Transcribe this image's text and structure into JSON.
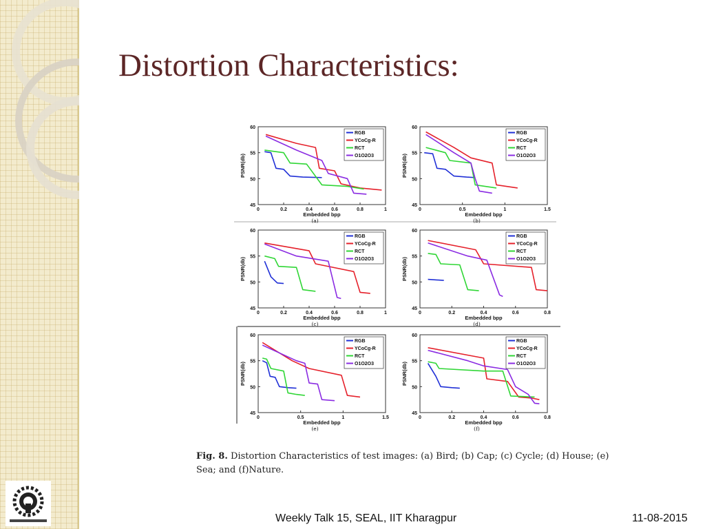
{
  "title": "Distortion Characteristics:",
  "caption": {
    "fig_label": "Fig. 8.",
    "text": "Distortion Characteristics of test images: (a) Bird; (b) Cap; (c) Cycle; (d) House; (e) Sea; and (f)Nature."
  },
  "footer": {
    "center": "Weekly Talk 15, SEAL, IIT Kharagpur",
    "date": "11-08-2015"
  },
  "logo": {
    "text": "IIT KHARAGPUR"
  },
  "colors": {
    "RGB": "#1f2fd6",
    "YCoCg-R": "#e5202a",
    "RCT": "#2fd635",
    "O1O2O3": "#8a2be2",
    "title": "#5c2626"
  },
  "chart_data": [
    {
      "type": "line",
      "label": "(a)",
      "xlabel": "Embedded bpp",
      "ylabel": "PSNR(db)",
      "xlim": [
        0,
        1
      ],
      "ylim": [
        45,
        60
      ],
      "xticks": [
        "0",
        "0.2",
        "0.4",
        "0.6",
        "0.8",
        "1"
      ],
      "yticks": [
        "45",
        "50",
        "55",
        "60"
      ],
      "legend": "top-right",
      "series": [
        {
          "name": "RGB",
          "points": [
            [
              0.05,
              55.2
            ],
            [
              0.1,
              55
            ],
            [
              0.14,
              52
            ],
            [
              0.2,
              51.8
            ],
            [
              0.25,
              50.5
            ],
            [
              0.35,
              50.3
            ],
            [
              0.5,
              50.2
            ]
          ]
        },
        {
          "name": "YCoCg-R",
          "points": [
            [
              0.06,
              58.5
            ],
            [
              0.3,
              56.8
            ],
            [
              0.45,
              56
            ],
            [
              0.48,
              52
            ],
            [
              0.6,
              51.5
            ],
            [
              0.65,
              49
            ],
            [
              0.8,
              48.2
            ],
            [
              0.97,
              47.8
            ]
          ]
        },
        {
          "name": "RCT",
          "points": [
            [
              0.05,
              55.5
            ],
            [
              0.2,
              55
            ],
            [
              0.25,
              53
            ],
            [
              0.38,
              52.8
            ],
            [
              0.5,
              48.8
            ],
            [
              0.7,
              48.5
            ],
            [
              0.83,
              48
            ]
          ]
        },
        {
          "name": "O1O2O3",
          "points": [
            [
              0.06,
              58.2
            ],
            [
              0.3,
              55.5
            ],
            [
              0.5,
              53.5
            ],
            [
              0.55,
              51
            ],
            [
              0.7,
              50
            ],
            [
              0.75,
              47.2
            ],
            [
              0.85,
              47
            ]
          ]
        }
      ]
    },
    {
      "type": "line",
      "label": "(b)",
      "xlabel": "Embedded bpp",
      "ylabel": "PSNR(db)",
      "xlim": [
        0,
        1.5
      ],
      "ylim": [
        45,
        60
      ],
      "xticks": [
        "0",
        "0.5",
        "1",
        "1.5"
      ],
      "yticks": [
        "45",
        "50",
        "55",
        "60"
      ],
      "legend": "top-right",
      "series": [
        {
          "name": "RGB",
          "points": [
            [
              0.05,
              55
            ],
            [
              0.15,
              54.8
            ],
            [
              0.2,
              52
            ],
            [
              0.3,
              51.8
            ],
            [
              0.4,
              50.5
            ],
            [
              0.55,
              50.3
            ],
            [
              0.65,
              50.2
            ]
          ]
        },
        {
          "name": "YCoCg-R",
          "points": [
            [
              0.07,
              59
            ],
            [
              0.4,
              56
            ],
            [
              0.6,
              54
            ],
            [
              0.85,
              53
            ],
            [
              0.9,
              48.8
            ],
            [
              1.15,
              48.2
            ]
          ]
        },
        {
          "name": "RCT",
          "points": [
            [
              0.07,
              56
            ],
            [
              0.3,
              55
            ],
            [
              0.35,
              53.5
            ],
            [
              0.6,
              53
            ],
            [
              0.65,
              48.8
            ],
            [
              0.9,
              48.2
            ]
          ]
        },
        {
          "name": "O1O2O3",
          "points": [
            [
              0.07,
              58.5
            ],
            [
              0.4,
              55
            ],
            [
              0.6,
              53
            ],
            [
              0.65,
              50
            ],
            [
              0.7,
              47.6
            ],
            [
              0.85,
              47.2
            ]
          ]
        }
      ]
    },
    {
      "type": "line",
      "label": "(c)",
      "xlabel": "Embedded bpp",
      "ylabel": "PSNR(db)",
      "xlim": [
        0,
        1
      ],
      "ylim": [
        45,
        60
      ],
      "xticks": [
        "0",
        "0.2",
        "0.4",
        "0.6",
        "0.8",
        "1"
      ],
      "yticks": [
        "45",
        "50",
        "55",
        "60"
      ],
      "legend": "top-right",
      "series": [
        {
          "name": "RGB",
          "points": [
            [
              0.05,
              54
            ],
            [
              0.1,
              51
            ],
            [
              0.15,
              49.8
            ],
            [
              0.2,
              49.7
            ]
          ]
        },
        {
          "name": "YCoCg-R",
          "points": [
            [
              0.05,
              57.5
            ],
            [
              0.4,
              56
            ],
            [
              0.45,
              53.5
            ],
            [
              0.75,
              52
            ],
            [
              0.8,
              48
            ],
            [
              0.88,
              47.8
            ]
          ]
        },
        {
          "name": "RCT",
          "points": [
            [
              0.05,
              55
            ],
            [
              0.13,
              54.5
            ],
            [
              0.16,
              53
            ],
            [
              0.3,
              52.8
            ],
            [
              0.35,
              48.5
            ],
            [
              0.45,
              48.2
            ]
          ]
        },
        {
          "name": "O1O2O3",
          "points": [
            [
              0.05,
              57.3
            ],
            [
              0.3,
              55
            ],
            [
              0.55,
              54
            ],
            [
              0.62,
              47
            ],
            [
              0.65,
              46.8
            ]
          ]
        }
      ]
    },
    {
      "type": "line",
      "label": "(d)",
      "xlabel": "Embedded bpp",
      "ylabel": "PSNR(db)",
      "xlim": [
        0,
        0.8
      ],
      "ylim": [
        45,
        60
      ],
      "xticks": [
        "0",
        "0.2",
        "0.4",
        "0.6",
        "0.8"
      ],
      "yticks": [
        "45",
        "50",
        "55",
        "60"
      ],
      "legend": "top-right",
      "series": [
        {
          "name": "RGB",
          "points": [
            [
              0.05,
              50.5
            ],
            [
              0.15,
              50.3
            ]
          ]
        },
        {
          "name": "YCoCg-R",
          "points": [
            [
              0.05,
              58
            ],
            [
              0.35,
              56.2
            ],
            [
              0.4,
              53.5
            ],
            [
              0.7,
              52.8
            ],
            [
              0.73,
              48.5
            ],
            [
              0.8,
              48.3
            ]
          ]
        },
        {
          "name": "RCT",
          "points": [
            [
              0.05,
              55.5
            ],
            [
              0.1,
              55.3
            ],
            [
              0.13,
              53.5
            ],
            [
              0.25,
              53.3
            ],
            [
              0.3,
              48.5
            ],
            [
              0.37,
              48.3
            ]
          ]
        },
        {
          "name": "O1O2O3",
          "points": [
            [
              0.05,
              57.5
            ],
            [
              0.3,
              55
            ],
            [
              0.42,
              54.2
            ],
            [
              0.5,
              47.5
            ],
            [
              0.52,
              47.2
            ]
          ]
        }
      ]
    },
    {
      "type": "line",
      "label": "(e)",
      "xlabel": "Embedded bpp",
      "ylabel": "PSNR(db)",
      "xlim": [
        0,
        1.5
      ],
      "ylim": [
        45,
        60
      ],
      "xticks": [
        "0",
        "0.5",
        "1",
        "1.5"
      ],
      "yticks": [
        "45",
        "50",
        "55",
        "60"
      ],
      "legend": "top-right",
      "series": [
        {
          "name": "RGB",
          "points": [
            [
              0.05,
              55
            ],
            [
              0.1,
              54.6
            ],
            [
              0.14,
              52
            ],
            [
              0.2,
              51.8
            ],
            [
              0.25,
              50
            ],
            [
              0.35,
              49.8
            ],
            [
              0.45,
              49.7
            ]
          ]
        },
        {
          "name": "YCoCg-R",
          "points": [
            [
              0.05,
              58.5
            ],
            [
              0.4,
              55
            ],
            [
              0.6,
              53.5
            ],
            [
              0.98,
              52.2
            ],
            [
              1.05,
              48.3
            ],
            [
              1.2,
              48
            ]
          ]
        },
        {
          "name": "RCT",
          "points": [
            [
              0.05,
              55.5
            ],
            [
              0.1,
              55.3
            ],
            [
              0.15,
              53.5
            ],
            [
              0.3,
              53
            ],
            [
              0.35,
              48.8
            ],
            [
              0.45,
              48.5
            ],
            [
              0.55,
              48.3
            ]
          ]
        },
        {
          "name": "O1O2O3",
          "points": [
            [
              0.05,
              58
            ],
            [
              0.45,
              55
            ],
            [
              0.55,
              54.5
            ],
            [
              0.6,
              50.7
            ],
            [
              0.7,
              50.5
            ],
            [
              0.75,
              47.5
            ],
            [
              0.9,
              47.3
            ]
          ]
        }
      ]
    },
    {
      "type": "line",
      "label": "(f)",
      "xlabel": "Embedded bpp",
      "ylabel": "PSNR(db)",
      "xlim": [
        0,
        0.8
      ],
      "ylim": [
        45,
        60
      ],
      "xticks": [
        "0",
        "0.2",
        "0.4",
        "0.6",
        "0.8"
      ],
      "yticks": [
        "45",
        "50",
        "55",
        "60"
      ],
      "legend": "top-right",
      "series": [
        {
          "name": "RGB",
          "points": [
            [
              0.05,
              54.5
            ],
            [
              0.1,
              52
            ],
            [
              0.13,
              50
            ],
            [
              0.2,
              49.8
            ],
            [
              0.25,
              49.7
            ]
          ]
        },
        {
          "name": "YCoCg-R",
          "points": [
            [
              0.05,
              57.5
            ],
            [
              0.4,
              55.5
            ],
            [
              0.42,
              51.5
            ],
            [
              0.55,
              51
            ],
            [
              0.62,
              48
            ],
            [
              0.7,
              47.8
            ],
            [
              0.75,
              47.5
            ]
          ]
        },
        {
          "name": "RCT",
          "points": [
            [
              0.05,
              54.8
            ],
            [
              0.1,
              54.5
            ],
            [
              0.12,
              53.5
            ],
            [
              0.4,
              53
            ],
            [
              0.52,
              53
            ],
            [
              0.57,
              48.2
            ],
            [
              0.72,
              48
            ]
          ]
        },
        {
          "name": "O1O2O3",
          "points": [
            [
              0.05,
              57
            ],
            [
              0.3,
              55
            ],
            [
              0.4,
              54
            ],
            [
              0.55,
              53.3
            ],
            [
              0.6,
              50
            ],
            [
              0.68,
              48.5
            ],
            [
              0.72,
              46.8
            ],
            [
              0.75,
              46.7
            ]
          ]
        }
      ]
    }
  ]
}
